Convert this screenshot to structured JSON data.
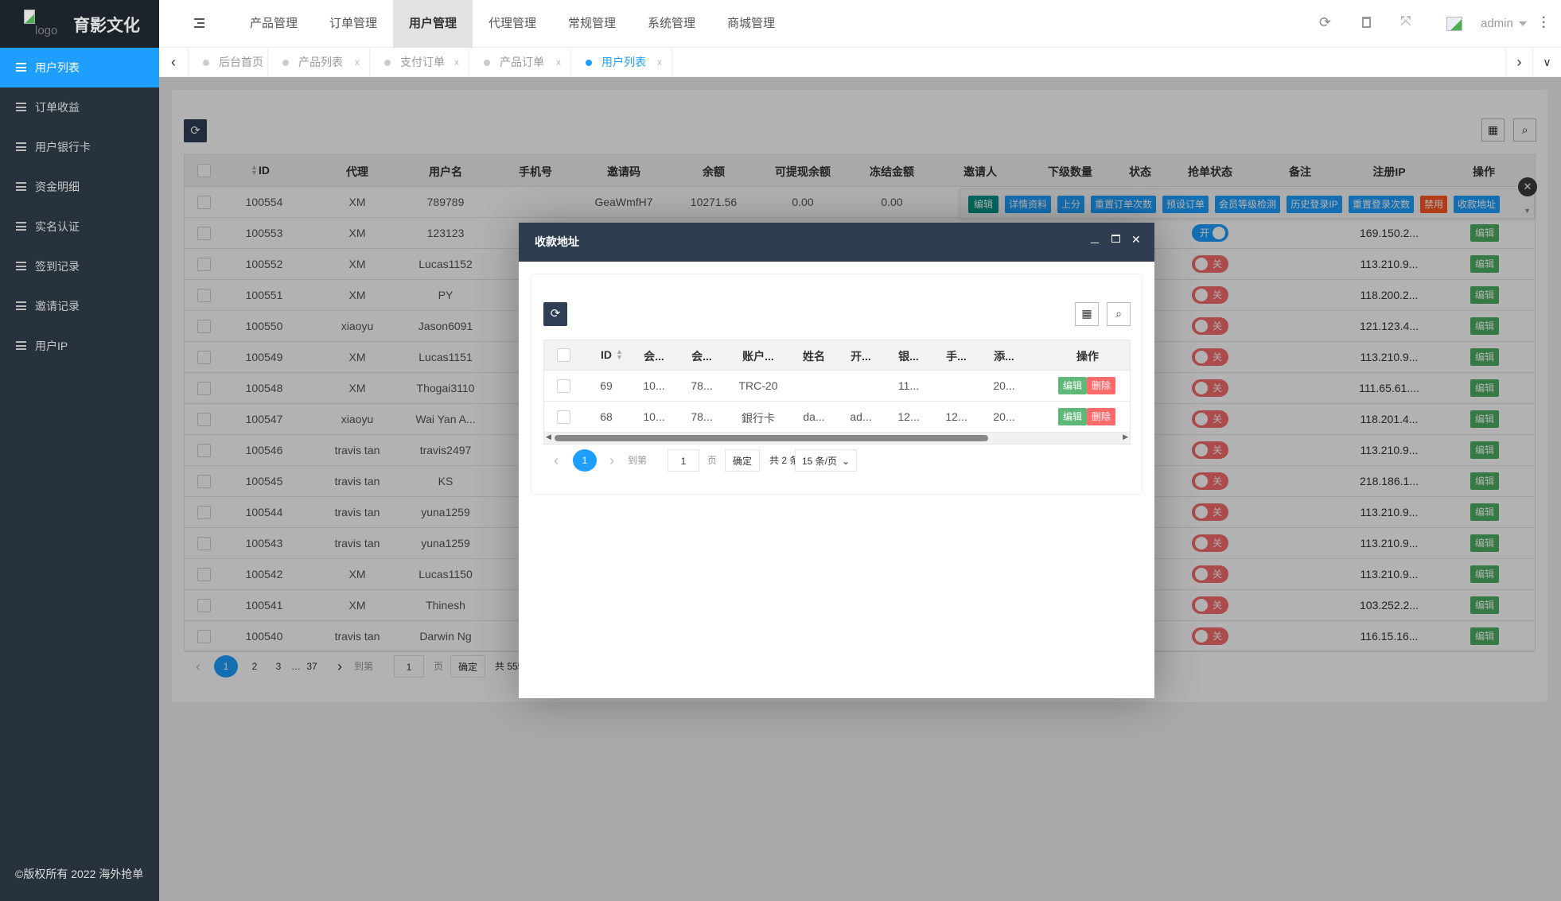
{
  "brand": {
    "logo_alt": "logo",
    "name": "育影文化"
  },
  "sidebar": {
    "items": [
      {
        "label": "用户列表",
        "active": true,
        "icon": "users-icon"
      },
      {
        "label": "订单收益"
      },
      {
        "label": "用户银行卡"
      },
      {
        "label": "资金明细"
      },
      {
        "label": "实名认证"
      },
      {
        "label": "签到记录"
      },
      {
        "label": "邀请记录"
      },
      {
        "label": "用户IP"
      }
    ],
    "footer": "©版权所有 2022 海外抢单"
  },
  "header": {
    "nav": [
      "产品管理",
      "订单管理",
      "用户管理",
      "代理管理",
      "常规管理",
      "系统管理",
      "商城管理"
    ],
    "active_nav": 2,
    "user": "admin",
    "icons": [
      "menu-icon",
      "refresh-icon",
      "trash-icon",
      "fullscreen-icon",
      "avatar",
      "caret-down-icon",
      "more-icon"
    ]
  },
  "tabs": [
    {
      "label": "后台首页",
      "closable": false
    },
    {
      "label": "产品列表",
      "closable": true
    },
    {
      "label": "支付订单",
      "closable": true
    },
    {
      "label": "产品订单",
      "closable": true
    },
    {
      "label": "用户列表",
      "closable": true,
      "active": true
    }
  ],
  "tab_close": "x",
  "table": {
    "columns": [
      "ID",
      "代理",
      "用户名",
      "手机号",
      "邀请码",
      "余额",
      "可提现余额",
      "冻结金额",
      "邀请人",
      "下级数量",
      "状态",
      "抢单状态",
      "备注",
      "注册IP",
      "操作"
    ],
    "rows": [
      {
        "id": "100554",
        "agent": "XM",
        "username": "789789",
        "phone": "",
        "invite": "GeaWmfH7",
        "balance": "10271.56",
        "withdrawable": "0.00",
        "frozen": "0.00"
      },
      {
        "id": "100553",
        "agent": "XM",
        "username": "123123",
        "grab": "开",
        "grab_on": true,
        "ip": "169.150.2..."
      },
      {
        "id": "100552",
        "agent": "XM",
        "username": "Lucas1152",
        "grab": "关",
        "grab_on": false,
        "ip": "113.210.9..."
      },
      {
        "id": "100551",
        "agent": "XM",
        "username": "PY",
        "grab": "关",
        "grab_on": false,
        "ip": "118.200.2..."
      },
      {
        "id": "100550",
        "agent": "xiaoyu",
        "username": "Jason6091",
        "grab": "关",
        "grab_on": false,
        "ip": "121.123.4..."
      },
      {
        "id": "100549",
        "agent": "XM",
        "username": "Lucas1151",
        "grab": "关",
        "grab_on": false,
        "ip": "113.210.9..."
      },
      {
        "id": "100548",
        "agent": "XM",
        "username": "Thogai3110",
        "grab": "关",
        "grab_on": false,
        "ip": "111.65.61...."
      },
      {
        "id": "100547",
        "agent": "xiaoyu",
        "username": "Wai Yan A...",
        "grab": "关",
        "grab_on": false,
        "ip": "118.201.4..."
      },
      {
        "id": "100546",
        "agent": "travis tan",
        "username": "travis2497",
        "grab": "关",
        "grab_on": false,
        "ip": "113.210.9..."
      },
      {
        "id": "100545",
        "agent": "travis tan",
        "username": "KS",
        "grab": "关",
        "grab_on": false,
        "ip": "218.186.1..."
      },
      {
        "id": "100544",
        "agent": "travis tan",
        "username": "yuna1259",
        "grab": "关",
        "grab_on": false,
        "ip": "113.210.9..."
      },
      {
        "id": "100543",
        "agent": "travis tan",
        "username": "yuna1259",
        "grab": "关",
        "grab_on": false,
        "ip": "113.210.9..."
      },
      {
        "id": "100542",
        "agent": "XM",
        "username": "Lucas1150",
        "grab": "关",
        "grab_on": false,
        "ip": "113.210.9..."
      },
      {
        "id": "100541",
        "agent": "XM",
        "username": "Thinesh",
        "grab": "关",
        "grab_on": false,
        "ip": "103.252.2..."
      },
      {
        "id": "100540",
        "agent": "travis tan",
        "username": "Darwin Ng",
        "grab": "关",
        "grab_on": false,
        "ip": "116.15.16..."
      }
    ],
    "edit_label": "编辑",
    "row_actions": [
      {
        "label": "编辑",
        "color": "#009688"
      },
      {
        "label": "详情资料",
        "color": "#1e9fff"
      },
      {
        "label": "上分",
        "color": "#1e9fff"
      },
      {
        "label": "重置订单次数",
        "color": "#1e9fff"
      },
      {
        "label": "预设订单",
        "color": "#1e9fff"
      },
      {
        "label": "会员等级检测",
        "color": "#1e9fff"
      },
      {
        "label": "历史登录IP",
        "color": "#1e9fff"
      },
      {
        "label": "重置登录次数",
        "color": "#1e9fff"
      },
      {
        "label": "禁用",
        "color": "#ff5722"
      },
      {
        "label": "收款地址",
        "color": "#1e9fff"
      }
    ],
    "pagination": {
      "pages": [
        "1",
        "2",
        "3",
        "…",
        "37"
      ],
      "current": "1",
      "goto": "到第",
      "page_input": "1",
      "page_unit": "页",
      "confirm": "确定",
      "total": "共 555 条"
    }
  },
  "modal": {
    "title": "收款地址",
    "columns": [
      "ID",
      "会...",
      "会...",
      "账户...",
      "姓名",
      "开...",
      "银...",
      "手...",
      "添...",
      "操作"
    ],
    "rows": [
      {
        "cells": [
          "69",
          "10...",
          "78...",
          "TRC-20",
          "",
          "",
          "11...",
          "",
          "20..."
        ]
      },
      {
        "cells": [
          "68",
          "10...",
          "78...",
          "銀行卡",
          "da...",
          "ad...",
          "12...",
          "12...",
          "20..."
        ]
      }
    ],
    "edit_label": "编辑",
    "delete_label": "删除",
    "pagination": {
      "current": "1",
      "goto": "到第",
      "page_input": "1",
      "page_unit": "页",
      "confirm": "确定",
      "total": "共 2 条",
      "page_size": "15 条/页"
    }
  },
  "colors": {
    "primary": "#1e9fff",
    "sidebar": "#28323c",
    "modal_header": "#2e3e50",
    "edit": "#5fb878",
    "delete": "#ff6b6b",
    "toggle_off": "#f56c6c"
  }
}
